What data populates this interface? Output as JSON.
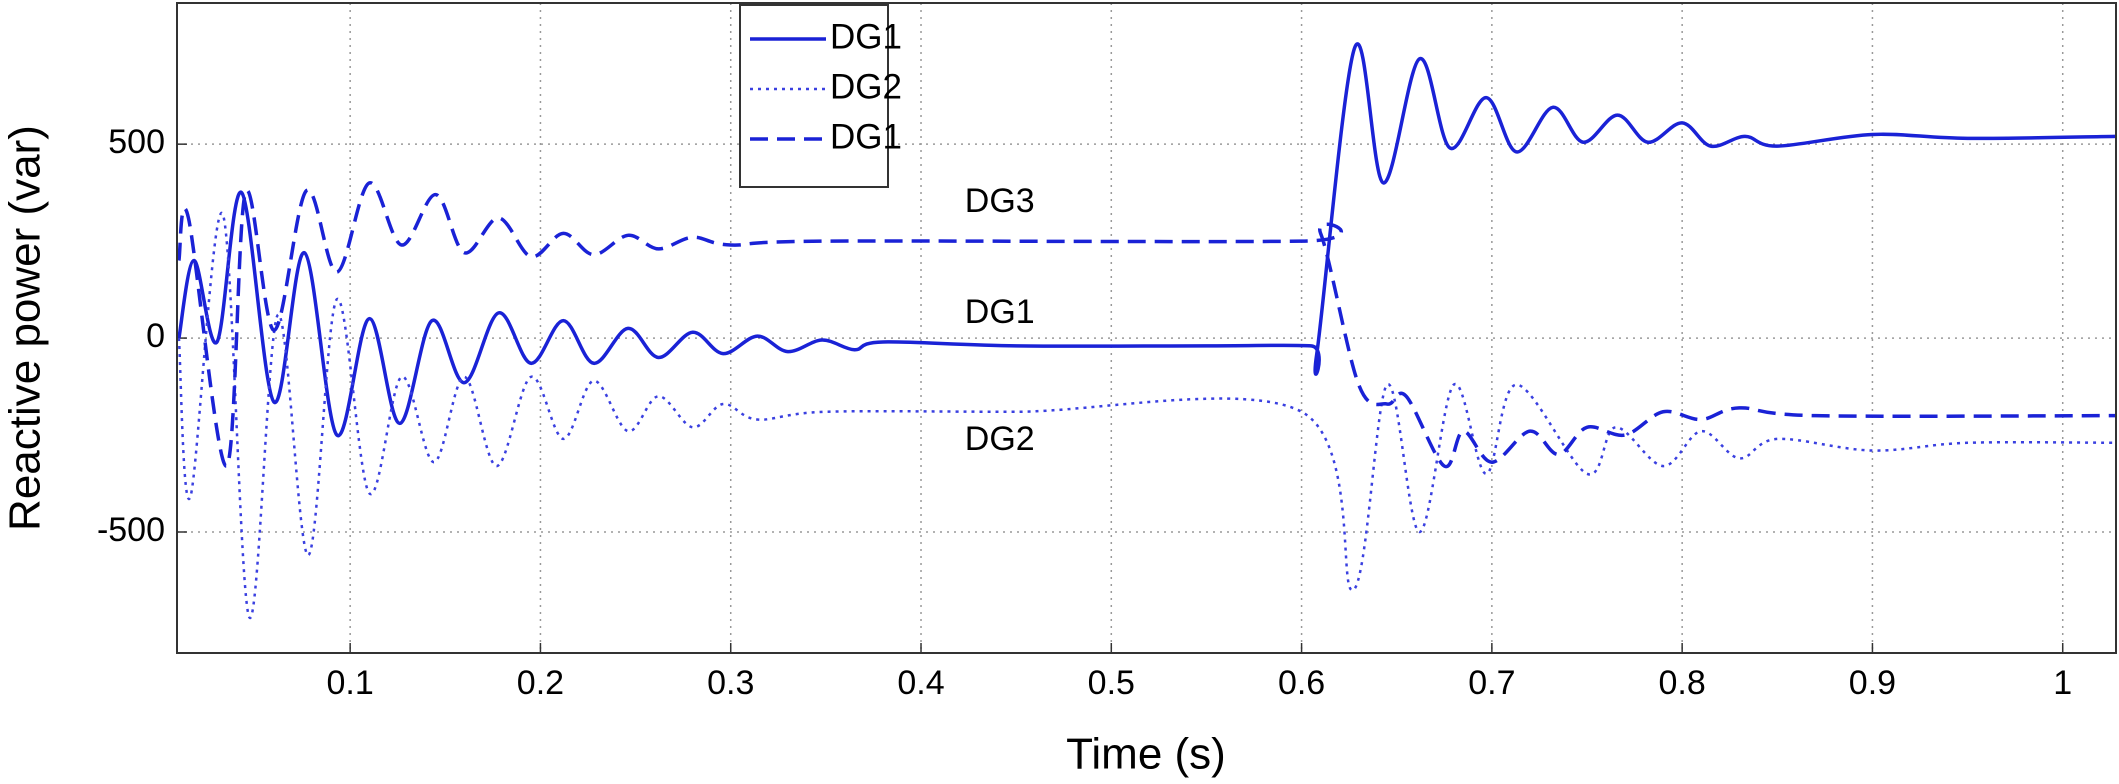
{
  "chart_data": {
    "type": "line",
    "xlabel": "Time (s)",
    "ylabel": "Reactive power (var)",
    "xlim": [
      0.009,
      1.028
    ],
    "ylim": [
      -812,
      864
    ],
    "xticks": [
      0.1,
      0.2,
      0.3,
      0.4,
      0.5,
      0.6,
      0.7,
      0.8,
      0.9,
      1
    ],
    "yticks": [
      -500,
      0,
      500
    ],
    "grid": true,
    "legend": true,
    "series": [
      {
        "name": "DG1",
        "color": "#1a22d6",
        "style": "solid",
        "x": [
          0.01,
          0.018,
          0.03,
          0.043,
          0.06,
          0.076,
          0.093,
          0.11,
          0.126,
          0.143,
          0.16,
          0.178,
          0.195,
          0.212,
          0.228,
          0.246,
          0.262,
          0.28,
          0.296,
          0.314,
          0.33,
          0.348,
          0.365,
          0.38,
          0.45,
          0.55,
          0.605,
          0.608,
          0.628,
          0.643,
          0.662,
          0.678,
          0.697,
          0.713,
          0.732,
          0.748,
          0.766,
          0.782,
          0.8,
          0.815,
          0.833,
          0.85,
          0.9,
          0.95,
          1.028
        ],
        "values": [
          0,
          200,
          -10,
          375,
          -165,
          220,
          -250,
          50,
          -220,
          45,
          -115,
          65,
          -65,
          45,
          -65,
          25,
          -50,
          15,
          -40,
          5,
          -35,
          -5,
          -30,
          -10,
          -20,
          -20,
          -20,
          -40,
          750,
          400,
          720,
          490,
          620,
          480,
          595,
          505,
          575,
          505,
          555,
          495,
          520,
          495,
          525,
          515,
          520
        ]
      },
      {
        "name": "DG2",
        "color": "#3a40e0",
        "style": "dotted",
        "x": [
          0.01,
          0.016,
          0.033,
          0.047,
          0.062,
          0.078,
          0.093,
          0.11,
          0.127,
          0.144,
          0.16,
          0.177,
          0.195,
          0.212,
          0.228,
          0.246,
          0.262,
          0.28,
          0.296,
          0.314,
          0.35,
          0.45,
          0.6,
          0.627,
          0.645,
          0.662,
          0.68,
          0.697,
          0.713,
          0.75,
          0.765,
          0.79,
          0.81,
          0.83,
          0.85,
          0.9,
          0.95,
          1.028
        ],
        "values": [
          0,
          -410,
          320,
          -720,
          60,
          -560,
          100,
          -400,
          -100,
          -320,
          -100,
          -330,
          -100,
          -260,
          -110,
          -240,
          -150,
          -230,
          -170,
          -210,
          -190,
          -190,
          -190,
          -650,
          -120,
          -500,
          -120,
          -350,
          -120,
          -350,
          -230,
          -330,
          -240,
          -310,
          -260,
          -290,
          -270,
          -270
        ]
      },
      {
        "name": "DG1",
        "color": "#1a22d6",
        "style": "dashed",
        "x": [
          0.01,
          0.015,
          0.035,
          0.045,
          0.06,
          0.077,
          0.093,
          0.11,
          0.127,
          0.145,
          0.16,
          0.178,
          0.195,
          0.212,
          0.228,
          0.246,
          0.262,
          0.28,
          0.3,
          0.35,
          0.6,
          0.61,
          0.63,
          0.645,
          0.655,
          0.675,
          0.685,
          0.7,
          0.72,
          0.735,
          0.75,
          0.77,
          0.79,
          0.81,
          0.83,
          0.87,
          1.028
        ],
        "values": [
          200,
          310,
          -330,
          375,
          20,
          380,
          170,
          400,
          240,
          370,
          220,
          310,
          210,
          270,
          215,
          265,
          230,
          260,
          240,
          250,
          250,
          270,
          -120,
          -170,
          -150,
          -330,
          -240,
          -320,
          -240,
          -300,
          -230,
          -250,
          -190,
          -210,
          -180,
          -200,
          -200
        ]
      }
    ],
    "annotations": [
      {
        "text": "DG3",
        "x": 0.423,
        "y": 348
      },
      {
        "text": "DG1",
        "x": 0.423,
        "y": 62
      },
      {
        "text": "DG2",
        "x": 0.423,
        "y": -265
      }
    ]
  }
}
